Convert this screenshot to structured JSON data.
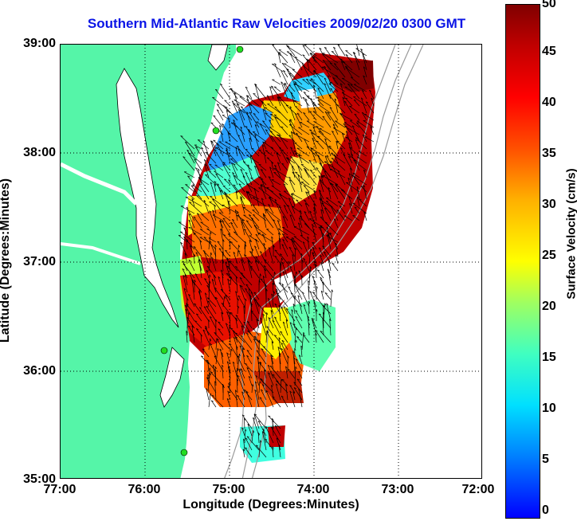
{
  "title": "Southern Mid-Atlantic Raw Velocities 2009/02/20 0300 GMT",
  "x_axis": {
    "label": "Longitude (Degrees:Minutes)",
    "ticks": [
      "77:00",
      "76:00",
      "75:00",
      "74:00",
      "73:00",
      "72:00"
    ],
    "range": [
      -77,
      -72
    ]
  },
  "y_axis": {
    "label": "Latitude (Degrees:Minutes)",
    "ticks": [
      "39:00",
      "38:00",
      "37:00",
      "36:00",
      "35:00"
    ],
    "range": [
      35,
      39
    ]
  },
  "colorbar": {
    "label": "Surface Velocity (cm/s)",
    "ticks": [
      "50",
      "45",
      "40",
      "35",
      "30",
      "25",
      "20",
      "15",
      "10",
      "5",
      "0"
    ],
    "range": [
      0,
      50
    ]
  },
  "colors": {
    "land": "#55f5a8",
    "title": "#0a14e6",
    "bathymetry": "#9a9a9a",
    "arrows": "#000000",
    "station": "#22dd22"
  },
  "grid": "dotted"
}
